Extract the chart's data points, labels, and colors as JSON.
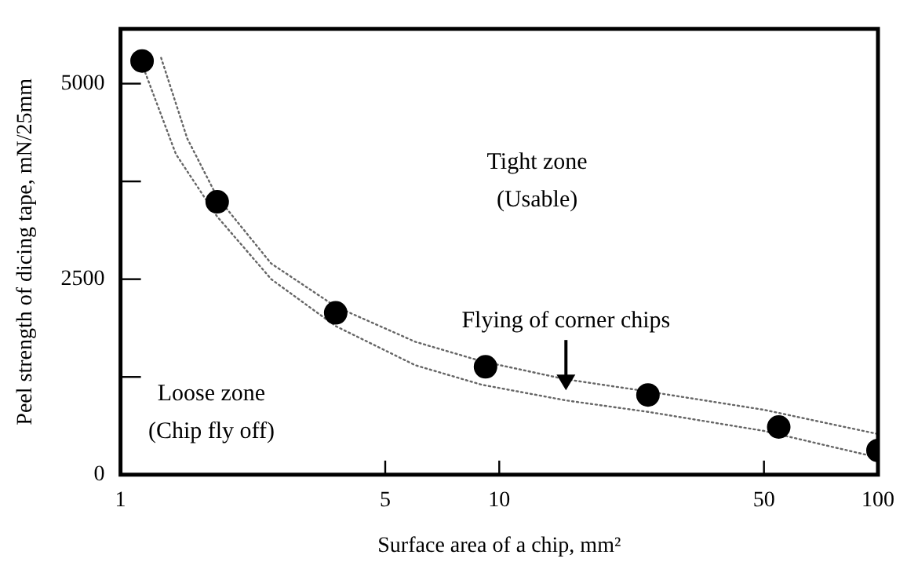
{
  "chart_data": {
    "type": "scatter",
    "xlabel": "Surface area of a chip, mm²",
    "ylabel": "Peel strength of dicing tape, mN/25mm",
    "log": "x",
    "xlim": [
      1,
      100
    ],
    "xticks": [
      1,
      5,
      10,
      50,
      100
    ],
    "ylim": [
      0,
      5700
    ],
    "yticks": [
      0,
      {
        "value": 1250,
        "label": null
      },
      2500,
      {
        "value": 3750,
        "label": null
      },
      5000
    ],
    "grid": false,
    "marker": "circle",
    "series": [
      {
        "color": "#000000",
        "x": [
          1.14,
          1.8,
          3.7,
          9.2,
          24.7,
          54.7,
          100
        ],
        "values": [
          5290,
          3490,
          2070,
          1380,
          1020,
          610,
          310
        ]
      },
      {
        "type": "line",
        "color": "#666666",
        "line_style": "dotted",
        "marker": "none",
        "x": [
          1.28,
          1.5,
          1.8,
          2.5,
          3.7,
          6,
          9,
          15,
          25,
          50,
          100
        ],
        "values": [
          5330,
          4300,
          3550,
          2700,
          2150,
          1700,
          1450,
          1220,
          1060,
          830,
          520
        ]
      },
      {
        "type": "line",
        "color": "#666666",
        "line_style": "dotted",
        "marker": "none",
        "x": [
          1.15,
          1.4,
          1.8,
          2.5,
          3.7,
          6,
          9,
          15,
          25,
          50,
          100
        ],
        "values": [
          5200,
          4100,
          3300,
          2500,
          1900,
          1400,
          1150,
          950,
          800,
          560,
          220
        ]
      }
    ],
    "annotations": [
      "Tight zone\n(Usable)",
      "Loose zone\n(Chip fly off)",
      {
        "text": "Flying of corner chips",
        "x": 15,
        "y": 1080
      }
    ]
  }
}
